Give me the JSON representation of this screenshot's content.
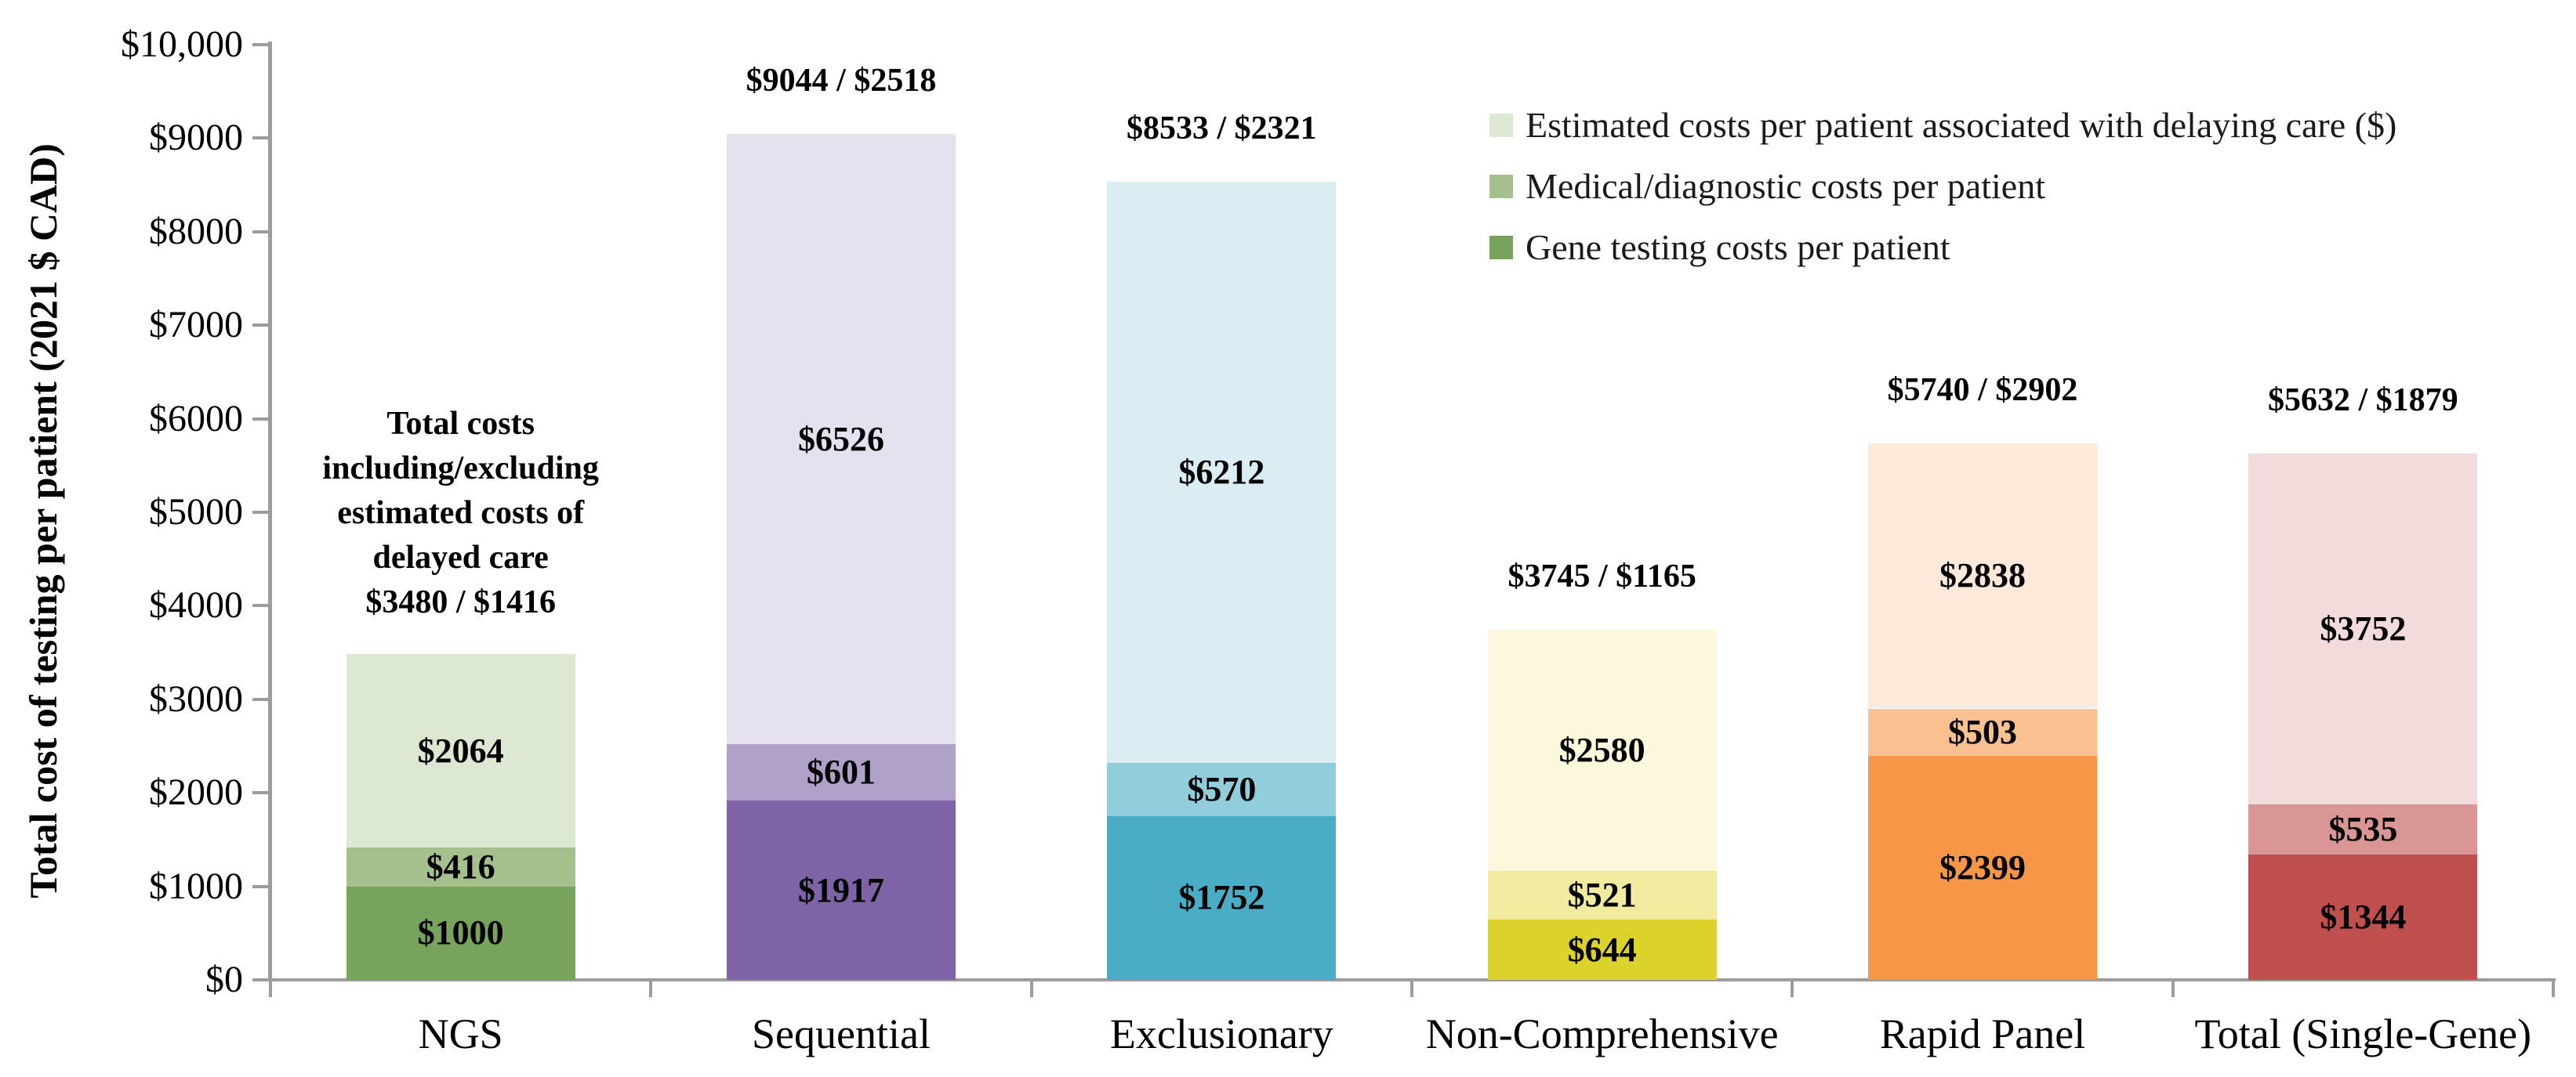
{
  "chart_data": {
    "type": "bar",
    "stacked": true,
    "ylabel": "Total cost of testing per patient (2021 $ CAD)",
    "ylim": [
      0,
      10000
    ],
    "grid": false,
    "axis_color": "#9c9c9c",
    "y_ticks": [
      {
        "value": 0,
        "label": "$0"
      },
      {
        "value": 1000,
        "label": "$1000"
      },
      {
        "value": 2000,
        "label": "$2000"
      },
      {
        "value": 3000,
        "label": "$3000"
      },
      {
        "value": 4000,
        "label": "$4000"
      },
      {
        "value": 5000,
        "label": "$5000"
      },
      {
        "value": 6000,
        "label": "$6000"
      },
      {
        "value": 7000,
        "label": "$7000"
      },
      {
        "value": 8000,
        "label": "$8000"
      },
      {
        "value": 9000,
        "label": "$9000"
      },
      {
        "value": 10000,
        "label": "$10,000"
      }
    ],
    "categories": [
      "NGS",
      "Sequential",
      "Exclusionary",
      "Non-Comprehensive",
      "Rapid Panel",
      "Total (Single-Gene)"
    ],
    "series": [
      {
        "name": "Gene testing costs per patient",
        "values": [
          1000,
          1917,
          1752,
          644,
          2399,
          1344
        ],
        "labels": [
          "$1000",
          "$1917",
          "$1752",
          "$644",
          "$2399",
          "$1344"
        ]
      },
      {
        "name": "Medical/diagnostic costs per patient",
        "values": [
          416,
          601,
          570,
          521,
          503,
          535
        ],
        "labels": [
          "$416",
          "$601",
          "$570",
          "$521",
          "$503",
          "$535"
        ]
      },
      {
        "name": "Estimated costs per patient associated with delaying care ($)",
        "values": [
          2064,
          6526,
          6212,
          2580,
          2838,
          3752
        ],
        "labels": [
          "$2064",
          "$6526",
          "$6212",
          "$2580",
          "$2838",
          "$3752"
        ]
      }
    ],
    "category_colors": [
      [
        "#77A35C",
        "#A6C08D",
        "#DCE8D2"
      ],
      [
        "#7E63A6",
        "#B0A1C9",
        "#E6E1EE"
      ],
      [
        "#4BACC6",
        "#92CDDC",
        "#D9EDF3"
      ],
      [
        "#DBD32B",
        "#F0EB9F",
        "#FBF8DC"
      ],
      [
        "#F79646",
        "#FAC090",
        "#FDE9D9"
      ],
      [
        "#C0504D",
        "#D99694",
        "#F2DCDB"
      ]
    ],
    "total_labels": [
      "",
      "$9044 / $2518",
      "$8533 / $2321",
      "$3745 / $1165",
      "$5740 / $2902",
      "$5632 / $1879"
    ],
    "annotation": {
      "category_index": 0,
      "lines": [
        "Total costs",
        "including/excluding",
        "estimated costs of",
        "delayed care",
        "$3480 / $1416"
      ]
    },
    "legend": {
      "position": "top-right",
      "entries": [
        {
          "label": "Estimated costs per patient associated with delaying care ($)",
          "color": "#DCE8D2"
        },
        {
          "label": "Medical/diagnostic costs per patient",
          "color": "#A6C08D"
        },
        {
          "label": "Gene testing costs per patient",
          "color": "#77A35C"
        }
      ]
    }
  }
}
